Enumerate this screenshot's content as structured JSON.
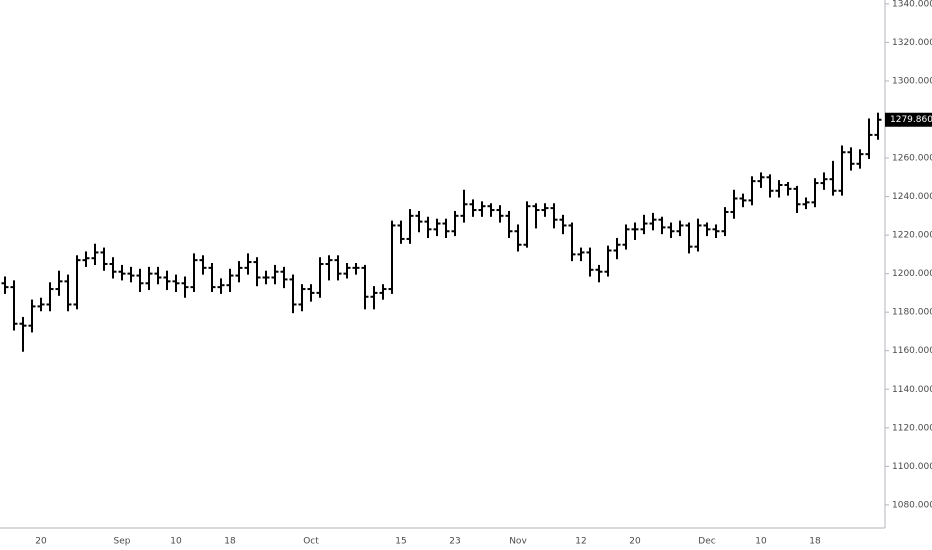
{
  "chart_data": {
    "type": "ohlc",
    "color": "#000000",
    "categories": [
      null,
      null,
      null,
      null,
      "20",
      null,
      null,
      null,
      null,
      null,
      null,
      null,
      null,
      "Sep",
      null,
      null,
      null,
      null,
      null,
      "10",
      null,
      null,
      null,
      null,
      null,
      "18",
      null,
      null,
      null,
      null,
      null,
      null,
      null,
      null,
      "Oct",
      null,
      null,
      null,
      null,
      null,
      null,
      null,
      null,
      null,
      "15",
      null,
      null,
      null,
      null,
      null,
      "23",
      null,
      null,
      null,
      null,
      null,
      null,
      "Nov",
      null,
      null,
      null,
      null,
      null,
      null,
      "12",
      null,
      null,
      null,
      null,
      null,
      "20",
      null,
      null,
      null,
      null,
      null,
      null,
      null,
      "Dec",
      null,
      null,
      null,
      null,
      null,
      "10",
      null,
      null,
      null,
      null,
      null,
      "18",
      null,
      null,
      null,
      null,
      null,
      null,
      null
    ],
    "open": [
      1195,
      1193,
      1174,
      1173,
      1183,
      1184,
      1192,
      1196,
      1184,
      1207,
      1208,
      1211,
      1205,
      1201,
      1200,
      1199,
      1195,
      1200,
      1198,
      1196,
      1195,
      1193,
      1207,
      1203,
      1193,
      1194,
      1199,
      1203,
      1206,
      1198,
      1198,
      1201,
      1197,
      1184,
      1192,
      1190,
      1205,
      1207,
      1200,
      1203,
      1203,
      1188,
      1190,
      1192,
      1225,
      1218,
      1230,
      1227,
      1223,
      1226,
      1222,
      1230,
      1236,
      1233,
      1235,
      1233,
      1230,
      1222,
      1215,
      1235,
      1233,
      1234,
      1228,
      1225,
      1210,
      1211,
      1202,
      1201,
      1212,
      1215,
      1223,
      1223,
      1226,
      1228,
      1224,
      1222,
      1225,
      1214,
      1225,
      1223,
      1222,
      1232,
      1239,
      1238,
      1248,
      1250,
      1243,
      1246,
      1244,
      1236,
      1237,
      1247,
      1249,
      1243,
      1263,
      1257,
      1262,
      1272
    ],
    "high": [
      1198,
      1196,
      1177,
      1186,
      1187,
      1195,
      1201,
      1199,
      1209,
      1211,
      1215,
      1213,
      1208,
      1204,
      1203,
      1202,
      1203,
      1203,
      1201,
      1199,
      1198,
      1210,
      1209,
      1205,
      1197,
      1202,
      1206,
      1210,
      1208,
      1201,
      1204,
      1203,
      1199,
      1194,
      1194,
      1208,
      1209,
      1209,
      1205,
      1205,
      1204,
      1193,
      1194,
      1227,
      1227,
      1233,
      1232,
      1229,
      1228,
      1228,
      1232,
      1243,
      1238,
      1237,
      1236,
      1235,
      1232,
      1225,
      1237,
      1236,
      1236,
      1236,
      1230,
      1226,
      1213,
      1213,
      1204,
      1214,
      1218,
      1225,
      1226,
      1230,
      1231,
      1229,
      1226,
      1227,
      1226,
      1228,
      1226,
      1225,
      1234,
      1243,
      1241,
      1250,
      1252,
      1251,
      1248,
      1247,
      1245,
      1239,
      1249,
      1252,
      1258,
      1266,
      1265,
      1264,
      1280,
      1283
    ],
    "low": [
      1190,
      1171,
      1160,
      1170,
      1181,
      1181,
      1189,
      1181,
      1182,
      1204,
      1205,
      1202,
      1198,
      1197,
      1196,
      1191,
      1192,
      1195,
      1192,
      1191,
      1188,
      1191,
      1200,
      1191,
      1190,
      1191,
      1196,
      1200,
      1194,
      1195,
      1195,
      1193,
      1180,
      1181,
      1186,
      1188,
      1197,
      1197,
      1198,
      1200,
      1182,
      1182,
      1187,
      1190,
      1216,
      1216,
      1222,
      1219,
      1220,
      1219,
      1220,
      1227,
      1230,
      1230,
      1230,
      1227,
      1219,
      1212,
      1214,
      1224,
      1230,
      1224,
      1221,
      1207,
      1207,
      1199,
      1196,
      1199,
      1208,
      1213,
      1218,
      1221,
      1223,
      1221,
      1219,
      1220,
      1211,
      1212,
      1220,
      1219,
      1220,
      1229,
      1235,
      1236,
      1245,
      1240,
      1240,
      1241,
      1232,
      1234,
      1235,
      1244,
      1241,
      1241,
      1254,
      1255,
      1260,
      1270
    ],
    "close": [
      1193,
      1174,
      1173,
      1183,
      1184,
      1192,
      1196,
      1184,
      1207,
      1208,
      1211,
      1205,
      1201,
      1200,
      1199,
      1195,
      1200,
      1198,
      1196,
      1195,
      1193,
      1207,
      1203,
      1193,
      1194,
      1199,
      1203,
      1206,
      1198,
      1198,
      1201,
      1197,
      1184,
      1192,
      1190,
      1205,
      1207,
      1200,
      1203,
      1203,
      1188,
      1190,
      1192,
      1225,
      1218,
      1230,
      1227,
      1223,
      1226,
      1222,
      1230,
      1236,
      1233,
      1235,
      1233,
      1230,
      1222,
      1215,
      1235,
      1233,
      1234,
      1228,
      1225,
      1210,
      1211,
      1202,
      1201,
      1212,
      1215,
      1223,
      1223,
      1226,
      1228,
      1224,
      1222,
      1225,
      1214,
      1225,
      1223,
      1222,
      1232,
      1239,
      1238,
      1248,
      1250,
      1243,
      1246,
      1244,
      1236,
      1237,
      1247,
      1249,
      1243,
      1263,
      1257,
      1262,
      1272,
      1279.86
    ],
    "last_value_label": "1279.8600",
    "ylim": [
      1068,
      1342
    ],
    "yticks": [
      {
        "value": 1080,
        "label": "1080.0000"
      },
      {
        "value": 1100,
        "label": "1100.0000"
      },
      {
        "value": 1120,
        "label": "1120.0000"
      },
      {
        "value": 1140,
        "label": "1140.0000"
      },
      {
        "value": 1160,
        "label": "1160.0000"
      },
      {
        "value": 1180,
        "label": "1180.0000"
      },
      {
        "value": 1200,
        "label": "1200.0000"
      },
      {
        "value": 1220,
        "label": "1220.0000"
      },
      {
        "value": 1240,
        "label": "1240.0000"
      },
      {
        "value": 1260,
        "label": "1260.0000"
      },
      {
        "value": 1280,
        "label": "1280.0000"
      },
      {
        "value": 1300,
        "label": "1300.0000"
      },
      {
        "value": 1320,
        "label": "1320.0000"
      },
      {
        "value": 1340,
        "label": "1340.0000"
      }
    ],
    "grid": false
  }
}
